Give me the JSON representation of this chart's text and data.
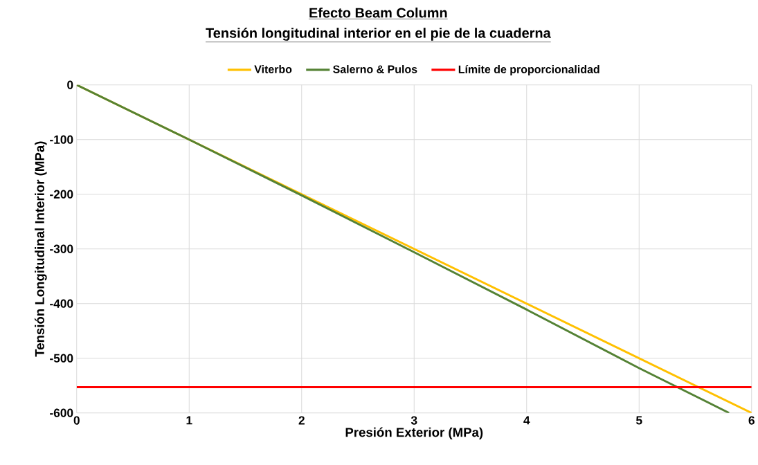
{
  "chart_data": {
    "type": "line",
    "title": "Efecto Beam Column",
    "subtitle": "Tensión longitudinal interior en el pie de la cuaderna",
    "xlabel": "Presión Exterior (MPa)",
    "ylabel": "Tensión Longitudinal Interior (MPa)",
    "series": [
      {
        "name": "Viterbo",
        "color": "#ffc000",
        "x": [
          0,
          6
        ],
        "values": [
          0,
          -600
        ]
      },
      {
        "name": "Salerno & Pulos",
        "color": "#548235",
        "x": [
          0,
          1,
          2,
          3,
          4,
          5,
          5.8
        ],
        "values": [
          0,
          -100,
          -202,
          -306,
          -411,
          -518,
          -600
        ]
      }
    ],
    "ref_lines": [
      {
        "axis": "y",
        "value": -553,
        "label": "Límite de proporcionalidad",
        "color": "#ff0000"
      }
    ],
    "xlim": [
      0,
      6
    ],
    "ylim": [
      -600,
      0
    ],
    "xticks": [
      0,
      1,
      2,
      3,
      4,
      5,
      6
    ],
    "yticks": [
      -600,
      -500,
      -400,
      -300,
      -200,
      -100,
      0
    ],
    "grid": true,
    "legend": "top",
    "marker": "none",
    "line_style": "solid"
  }
}
